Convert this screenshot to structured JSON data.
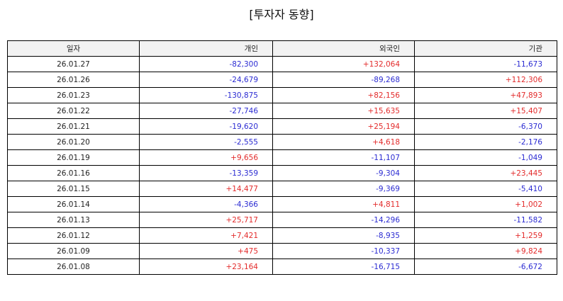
{
  "title": "[투자자 동향]",
  "table": {
    "headers": [
      "일자",
      "개인",
      "외국인",
      "기관"
    ],
    "colors": {
      "positive": "#e32b2b",
      "negative": "#2b2bd2"
    },
    "rows": [
      [
        "26.01.27",
        "-82,300",
        "+132,064",
        "-11,673"
      ],
      [
        "26.01.26",
        "-24,679",
        "-89,268",
        "+112,306"
      ],
      [
        "26.01.23",
        "-130,875",
        "+82,156",
        "+47,893"
      ],
      [
        "26.01.22",
        "-27,746",
        "+15,635",
        "+15,407"
      ],
      [
        "26.01.21",
        "-19,620",
        "+25,194",
        "-6,370"
      ],
      [
        "26.01.20",
        "-2,555",
        "+4,618",
        "-2,176"
      ],
      [
        "26.01.19",
        "+9,656",
        "-11,107",
        "-1,049"
      ],
      [
        "26.01.16",
        "-13,359",
        "-9,304",
        "+23,445"
      ],
      [
        "26.01.15",
        "+14,477",
        "-9,369",
        "-5,410"
      ],
      [
        "26.01.14",
        "-4,366",
        "+4,811",
        "+1,002"
      ],
      [
        "26.01.13",
        "+25,717",
        "-14,296",
        "-11,582"
      ],
      [
        "26.01.12",
        "+7,421",
        "-8,935",
        "+1,259"
      ],
      [
        "26.01.09",
        "+475",
        "-10,337",
        "+9,824"
      ],
      [
        "26.01.08",
        "+23,164",
        "-16,715",
        "-6,672"
      ]
    ]
  }
}
